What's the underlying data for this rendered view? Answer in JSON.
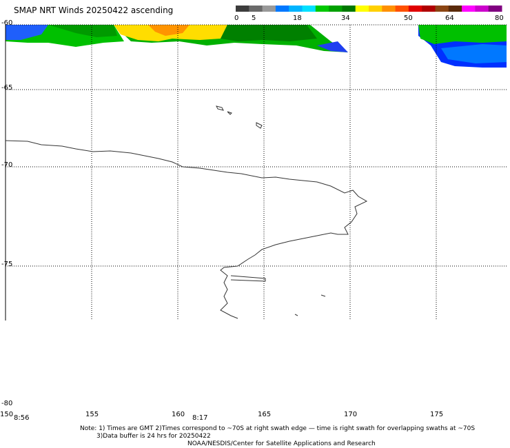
{
  "title": "SMAP NRT Winds 20250422 ascending",
  "color_scale": {
    "labels": [
      "0",
      "5",
      "18",
      "34",
      "50",
      "64",
      "80"
    ],
    "colors": [
      "#3c3c3c",
      "#6a6a6a",
      "#999999",
      "#0078ff",
      "#00b4ff",
      "#00e0ff",
      "#00c800",
      "#00a000",
      "#007800",
      "#ffff00",
      "#ffd000",
      "#ff9000",
      "#ff5000",
      "#e00000",
      "#b00000",
      "#8b4513",
      "#5a2a0a",
      "#ff00ff",
      "#cc00cc",
      "#800080"
    ]
  },
  "latitudes": [
    "-60",
    "-65",
    "-70",
    "-75",
    "-80"
  ],
  "longitudes": [
    "150",
    "155",
    "160",
    "165",
    "170",
    "175"
  ],
  "pass_times": [
    "8:56",
    "8:17"
  ],
  "notes": {
    "line1": "Note: 1) Times are GMT 2)Times correspond to ~70S at right swath edge — time is right swath for overlapping swaths at ~70S",
    "line2": "3)Data buffer is 24 hrs for 20250422",
    "line3": "NOAA/NESDIS/Center for Satellite Applications and Research"
  }
}
